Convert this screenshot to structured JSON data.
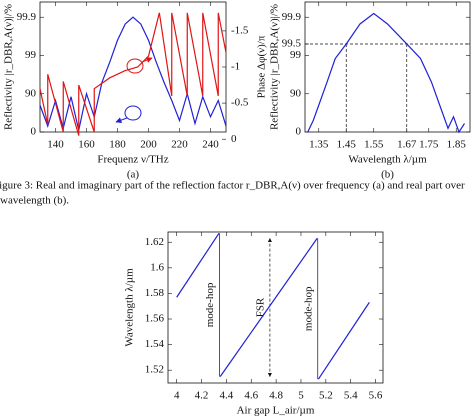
{
  "chart_data": [
    {
      "type": "line",
      "label": "(a)",
      "xlabel": "Frequenz ν/THz",
      "ylabel": "Reflectivity |r_DBR,A(ν)|/%",
      "ylabel_color": "#2020d8",
      "y2label": "Phase Δφ(ν)/π",
      "y2label_color": "#e01515",
      "yscale": "reflectivity",
      "xlim": [
        130,
        250
      ],
      "xticks": [
        140,
        160,
        180,
        200,
        220,
        240
      ],
      "ylim": [
        0,
        99.96
      ],
      "yticks": [
        0,
        90,
        99,
        99.9
      ],
      "y2lim": [
        -0.1,
        -1.9
      ],
      "y2ticks": [
        0,
        -0.5,
        -1,
        -1.5
      ],
      "series": [
        {
          "color": "#2020d8",
          "x": [
            130,
            135,
            140,
            145,
            150,
            155,
            160,
            165,
            170,
            175,
            180,
            185,
            190,
            195,
            200,
            205,
            210,
            215,
            220,
            225,
            230,
            235,
            240,
            245,
            250
          ],
          "values": [
            80,
            30,
            85,
            20,
            88,
            10,
            90,
            60,
            95,
            98.5,
            99.6,
            99.85,
            99.9,
            99.85,
            99.6,
            98.5,
            95,
            85,
            50,
            90,
            40,
            88,
            60,
            85,
            30
          ]
        },
        {
          "color": "#e01515",
          "axis": "y2",
          "x": [
            130,
            135,
            135,
            145,
            145,
            155,
            155,
            165,
            165,
            175,
            185,
            193,
            200,
            207,
            215,
            215,
            225,
            225,
            235,
            235,
            245,
            245,
            250
          ],
          "values": [
            -0.7,
            -0.2,
            -0.9,
            -0.1,
            -0.8,
            -0.05,
            -0.75,
            -0.1,
            -0.7,
            -0.85,
            -0.95,
            -1.0,
            -1.15,
            -1.75,
            -0.6,
            -1.75,
            -0.6,
            -1.75,
            -0.6,
            -1.75,
            -0.6,
            -1.75,
            -1.2
          ]
        }
      ]
    },
    {
      "type": "line",
      "label": "(b)",
      "xlabel": "Wavelength λ/µm",
      "ylabel": "Reflectivity |r_DBR,A(ν)|/%",
      "ylabel_color": "#2020d8",
      "yscale": "reflectivity",
      "xlim": [
        1.3,
        1.9
      ],
      "xticks": [
        1.35,
        1.45,
        1.55,
        1.67,
        1.75,
        1.85
      ],
      "ylim": [
        0,
        99.96
      ],
      "yticks": [
        0,
        90,
        99,
        99.5,
        99.9
      ],
      "reference_lines": {
        "y": [
          99.5
        ],
        "x": [
          1.45,
          1.67
        ]
      },
      "series": [
        {
          "color": "#2020d8",
          "x": [
            1.31,
            1.33,
            1.35,
            1.38,
            1.41,
            1.45,
            1.5,
            1.55,
            1.6,
            1.67,
            1.72,
            1.76,
            1.79,
            1.82,
            1.84,
            1.86,
            1.88
          ],
          "values": [
            0,
            50,
            80,
            95,
            98.8,
            99.5,
            99.85,
            99.92,
            99.85,
            99.5,
            98.8,
            95,
            80,
            20,
            60,
            0,
            40
          ]
        }
      ]
    },
    {
      "type": "line",
      "xlabel": "Air gap L_air/µm",
      "ylabel": "Wavelength λ/µm",
      "xlim": [
        3.93,
        5.66
      ],
      "xticks": [
        4,
        4.2,
        4.4,
        4.6,
        4.8,
        5,
        5.2,
        5.4,
        5.6
      ],
      "ylim": [
        1.51,
        1.628
      ],
      "yticks": [
        1.52,
        1.54,
        1.56,
        1.58,
        1.6,
        1.62
      ],
      "series": [
        {
          "color": "#2020d8",
          "x": [
            4,
            4.34,
            null,
            4.35,
            5.13,
            null,
            5.14,
            5.55
          ],
          "values": [
            1.577,
            1.627,
            null,
            1.515,
            1.623,
            null,
            1.513,
            1.573
          ]
        }
      ],
      "annotations": [
        {
          "text": "mode-hop",
          "x": 4.345,
          "y": [
            1.627,
            1.515
          ]
        },
        {
          "text": "FSR",
          "x": 4.75,
          "y": [
            1.515,
            1.623
          ],
          "style": "dashed-arrow"
        },
        {
          "text": "mode-hop",
          "x": 5.135,
          "y": [
            1.623,
            1.513
          ]
        }
      ]
    }
  ],
  "caption": [
    "Figure 3: Real and imaginary part of the reflection factor r_DBR,A(ν) over frequency (a) and real part over",
    "wavelength (b)."
  ]
}
